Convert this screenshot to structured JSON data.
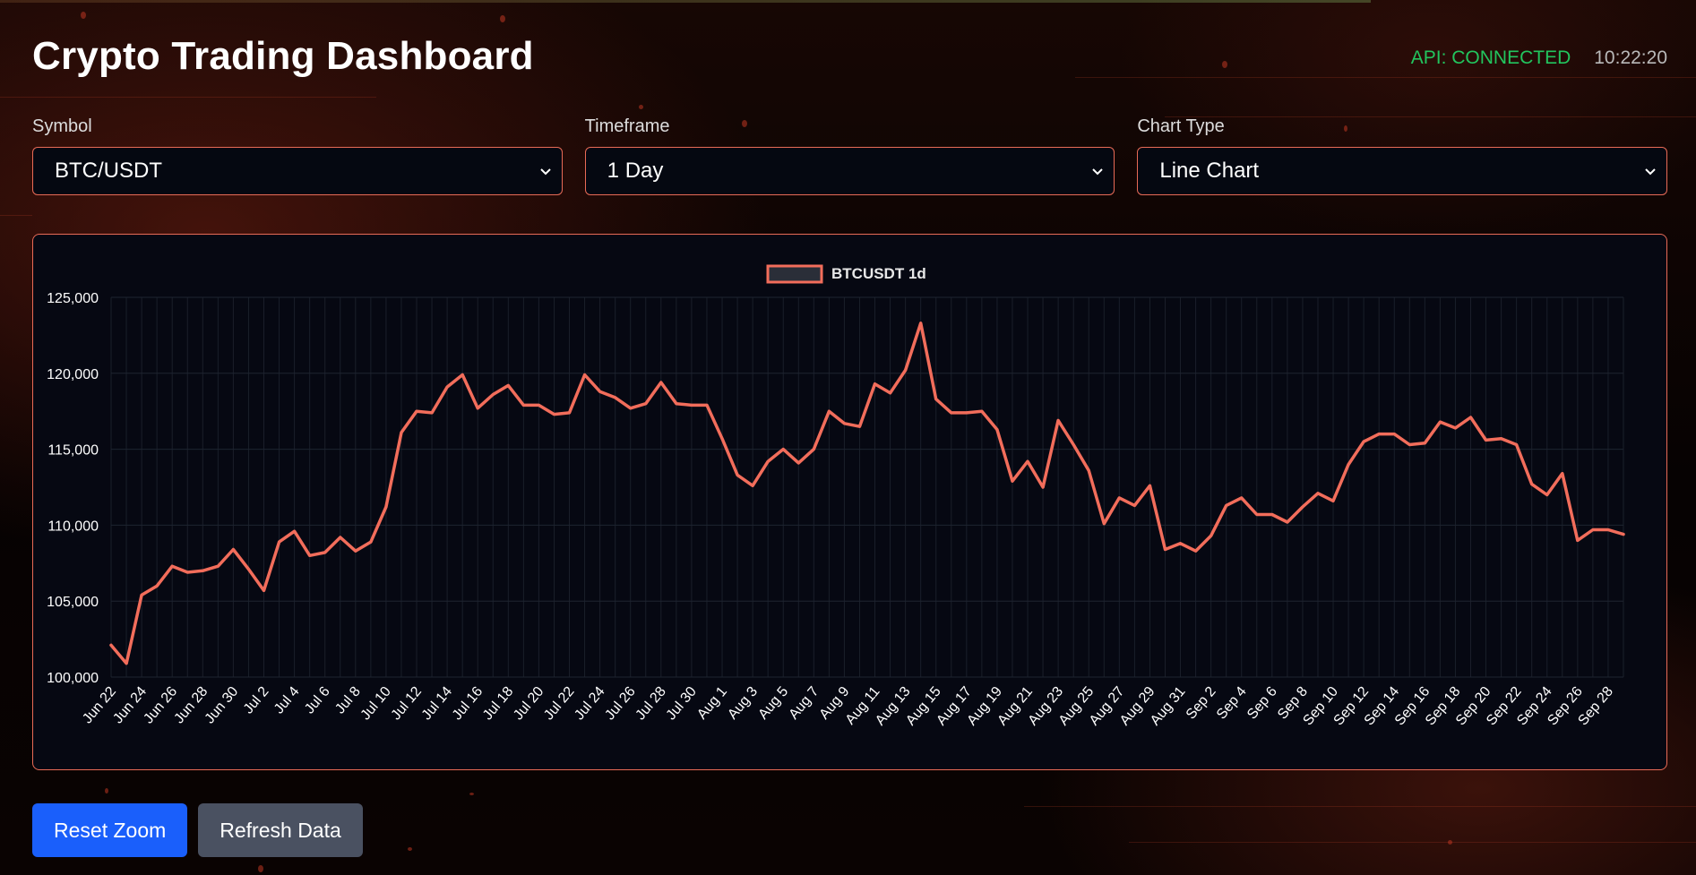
{
  "header": {
    "title": "Crypto Trading Dashboard",
    "api_status": "API: CONNECTED",
    "clock": "10:22:20"
  },
  "controls": {
    "symbol": {
      "label": "Symbol",
      "value": "BTC/USDT"
    },
    "timeframe": {
      "label": "Timeframe",
      "value": "1 Day"
    },
    "chart_type": {
      "label": "Chart Type",
      "value": "Line Chart"
    }
  },
  "buttons": {
    "reset_zoom": "Reset Zoom",
    "refresh_data": "Refresh Data"
  },
  "colors": {
    "line": "#f26d5b",
    "accent_border": "#e86a56",
    "api_connected": "#22c55e",
    "primary_button": "#1a5ffb",
    "secondary_button": "#4a5161"
  },
  "icons": {
    "select_arrow": "chevron-down-icon"
  },
  "chart_data": {
    "type": "line",
    "legend": "BTCUSDT 1d",
    "legend_position": "top-center",
    "grid": true,
    "ylim": [
      100000,
      125000
    ],
    "yticks": [
      "100,000",
      "105,000",
      "110,000",
      "115,000",
      "120,000",
      "125,000"
    ],
    "xtick_labels": [
      "Jun 22",
      "Jun 24",
      "Jun 26",
      "Jun 28",
      "Jun 30",
      "Jul 2",
      "Jul 4",
      "Jul 6",
      "Jul 8",
      "Jul 10",
      "Jul 12",
      "Jul 14",
      "Jul 16",
      "Jul 18",
      "Jul 20",
      "Jul 22",
      "Jul 24",
      "Jul 26",
      "Jul 28",
      "Jul 30",
      "Aug 1",
      "Aug 3",
      "Aug 5",
      "Aug 7",
      "Aug 9",
      "Aug 11",
      "Aug 13",
      "Aug 15",
      "Aug 17",
      "Aug 19",
      "Aug 21",
      "Aug 23",
      "Aug 25",
      "Aug 27",
      "Aug 29",
      "Aug 31",
      "Sep 2",
      "Sep 4",
      "Sep 6",
      "Sep 8",
      "Sep 10",
      "Sep 12",
      "Sep 14",
      "Sep 16",
      "Sep 18",
      "Sep 20",
      "Sep 22",
      "Sep 24",
      "Sep 26",
      "Sep 28"
    ],
    "x_start": "2025-06-22",
    "values": [
      102100,
      100900,
      105400,
      106000,
      107300,
      106900,
      107000,
      107300,
      108400,
      107100,
      105700,
      108900,
      109600,
      108000,
      108200,
      109200,
      108300,
      108900,
      111200,
      116100,
      117500,
      117400,
      119100,
      119900,
      117700,
      118600,
      119200,
      117900,
      117900,
      117300,
      117400,
      119900,
      118800,
      118400,
      117700,
      118000,
      119400,
      118000,
      117900,
      117900,
      115700,
      113300,
      112600,
      114200,
      115000,
      114100,
      115000,
      117500,
      116700,
      116500,
      119300,
      118700,
      120200,
      123300,
      118300,
      117400,
      117400,
      117500,
      116300,
      112900,
      114200,
      112500,
      116900,
      115300,
      113600,
      110100,
      111800,
      111300,
      112600,
      108400,
      108800,
      108300,
      109300,
      111300,
      111800,
      110700,
      110700,
      110200,
      111200,
      112100,
      111600,
      114000,
      115500,
      116000,
      116000,
      115300,
      115400,
      116800,
      116400,
      117100,
      115600,
      115700,
      115300,
      112700,
      112000,
      113400,
      109000,
      109700,
      109700,
      109400
    ]
  }
}
